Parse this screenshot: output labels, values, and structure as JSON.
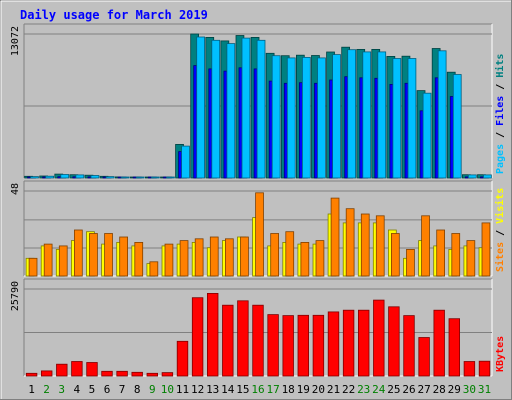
{
  "chart_data": {
    "type": "bar",
    "title": "Daily usage for March 2019",
    "categories": [
      "1",
      "2",
      "3",
      "4",
      "5",
      "6",
      "7",
      "8",
      "9",
      "10",
      "11",
      "12",
      "13",
      "14",
      "15",
      "16",
      "17",
      "18",
      "19",
      "20",
      "21",
      "22",
      "23",
      "24",
      "25",
      "26",
      "27",
      "28",
      "29",
      "30",
      "31"
    ],
    "weekend_days": [
      "2",
      "3",
      "9",
      "10",
      "16",
      "17",
      "23",
      "24",
      "30",
      "31"
    ],
    "panels": [
      {
        "name": "hits-files-pages",
        "ymax": 13072,
        "ymax_label": "13072",
        "axis_label_parts": [
          {
            "text": "Pages",
            "color": "#00c0ff"
          },
          {
            "text": " / ",
            "color": "#000000"
          },
          {
            "text": "Files",
            "color": "#0000ff"
          },
          {
            "text": " / ",
            "color": "#000000"
          },
          {
            "text": "Hits",
            "color": "#008080"
          }
        ],
        "series": [
          {
            "name": "Hits",
            "color": "#008080",
            "values": [
              150,
              180,
              350,
              300,
              250,
              150,
              100,
              80,
              80,
              80,
              3050,
              13072,
              12760,
              12450,
              12940,
              12760,
              11320,
              11100,
              11150,
              11120,
              11440,
              11870,
              11670,
              11670,
              11040,
              11060,
              7930,
              11760,
              9600,
              300,
              300
            ]
          },
          {
            "name": "Files",
            "color": "#0000ff",
            "values": [
              60,
              80,
              120,
              110,
              100,
              60,
              40,
              30,
              30,
              30,
              2400,
              10200,
              9900,
              9700,
              10000,
              9900,
              8800,
              8600,
              8650,
              8600,
              8900,
              9200,
              9100,
              9050,
              8500,
              8600,
              6100,
              9100,
              7400,
              100,
              100
            ]
          },
          {
            "name": "Pages",
            "color": "#00c0ff",
            "values": [
              130,
              160,
              320,
              280,
              230,
              130,
              90,
              70,
              70,
              70,
              2900,
              12800,
              12500,
              12200,
              12700,
              12500,
              11100,
              10900,
              10950,
              10900,
              11200,
              11650,
              11450,
              11450,
              10850,
              10850,
              7700,
              11550,
              9400,
              280,
              280
            ]
          }
        ]
      },
      {
        "name": "visits-sites",
        "ymax": 48,
        "ymax_label": "48",
        "axis_label_parts": [
          {
            "text": "Sites",
            "color": "#ff8000"
          },
          {
            "text": " / ",
            "color": "#000000"
          },
          {
            "text": "Visits",
            "color": "#ffff00"
          }
        ],
        "series": [
          {
            "name": "Visits",
            "color": "#ffff00",
            "values": [
              10,
              17,
              15,
              20,
              25,
              18,
              19,
              17,
              7,
              17,
              18,
              19,
              16,
              20,
              22,
              33,
              17,
              19,
              18,
              18,
              35,
              30,
              30,
              30,
              26,
              10,
              20,
              17,
              15,
              17,
              16
            ]
          },
          {
            "name": "Sites",
            "color": "#ff8000",
            "values": [
              10,
              18,
              17,
              26,
              24,
              24,
              22,
              19,
              8,
              18,
              20,
              21,
              22,
              21,
              22,
              47,
              24,
              25,
              19,
              20,
              44,
              38,
              35,
              34,
              24,
              15,
              34,
              26,
              24,
              20,
              30
            ]
          }
        ]
      },
      {
        "name": "kbytes",
        "ymax": 25790,
        "ymax_label": "25790",
        "axis_label_parts": [
          {
            "text": "KBytes",
            "color": "#ff0000"
          }
        ],
        "series": [
          {
            "name": "KBytes",
            "color": "#ff0000",
            "values": [
              800,
              1500,
              3500,
              4300,
              4000,
              1400,
              1400,
              1100,
              800,
              1000,
              10300,
              23200,
              24500,
              21000,
              22300,
              21000,
              18200,
              17900,
              18000,
              18000,
              19000,
              19500,
              19500,
              22500,
              20500,
              17900,
              11400,
              19500,
              17000,
              4300,
              4400
            ]
          }
        ]
      }
    ]
  }
}
